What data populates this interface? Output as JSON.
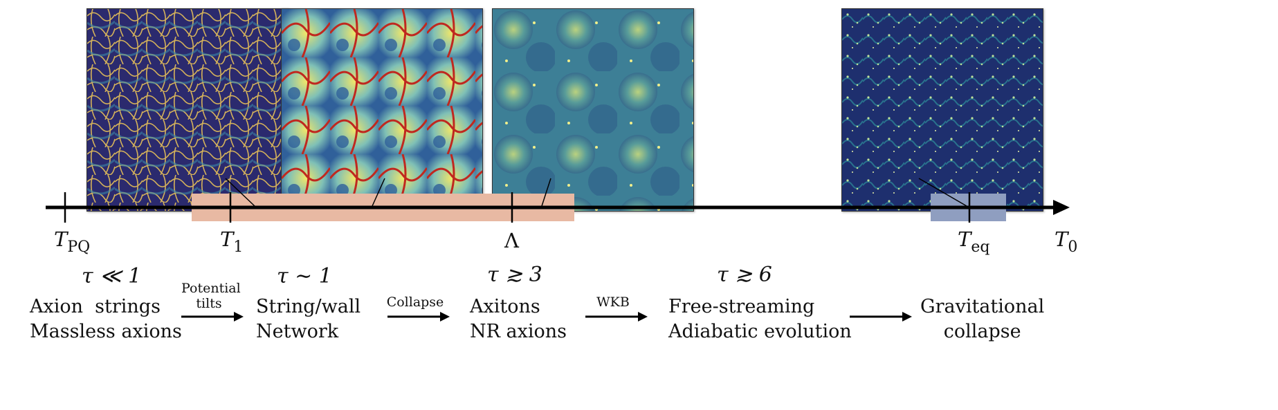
{
  "panels": [
    {
      "id": "strings",
      "colormap": [
        "#2b2a6e",
        "#356f99",
        "#d6b35a"
      ]
    },
    {
      "id": "walls",
      "colormap": [
        "#30609a",
        "#7fc0b6",
        "#efe66a",
        "#c0281f"
      ]
    },
    {
      "id": "axitons",
      "colormap": [
        "#2f5d88",
        "#5fa39a",
        "#d9e67a"
      ]
    },
    {
      "id": "gravitational",
      "colormap": [
        "#1e2f6e",
        "#2e6f92",
        "#bfe29a"
      ]
    }
  ],
  "timeline": {
    "shaded_regions": [
      {
        "color": "#e8b9a3"
      },
      {
        "color": "#8f9ec0"
      }
    ],
    "ticks": [
      {
        "base": "T",
        "sub": "PQ"
      },
      {
        "base": "T",
        "sub": "1"
      },
      {
        "base": "Λ",
        "sub": ""
      },
      {
        "base": "T",
        "sub": "eq"
      },
      {
        "base": "T",
        "sub": "0"
      }
    ]
  },
  "taus": [
    "τ ≪ 1",
    "τ ∼ 1",
    "τ ≳ 3",
    "τ ≳ 6"
  ],
  "stages": [
    {
      "line1": "Axion  strings",
      "line2": "Massless axions"
    },
    {
      "line1": "String/wall",
      "line2": "Network"
    },
    {
      "line1": "Axitons",
      "line2": "NR axions"
    },
    {
      "line1": "Free-streaming",
      "line2": "Adiabatic evolution"
    },
    {
      "line1": "Gravitational",
      "line2": "collapse"
    }
  ],
  "transitions": [
    {
      "line1": "Potential",
      "line2": "tilts"
    },
    {
      "line1": "Collapse",
      "line2": ""
    },
    {
      "line1": "WKB",
      "line2": ""
    },
    {
      "line1": "",
      "line2": ""
    }
  ]
}
